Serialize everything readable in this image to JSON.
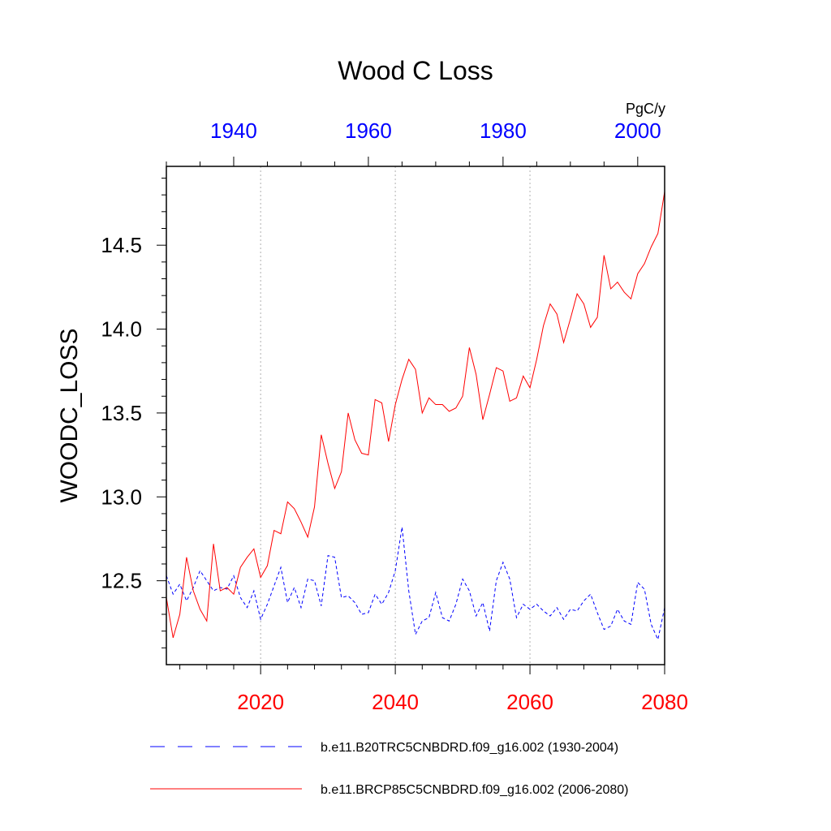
{
  "chart_data": {
    "type": "line",
    "title": "Wood C Loss",
    "units": "PgC/y",
    "ylabel": "WOODC_LOSS",
    "ylim": [
      12.0,
      14.97
    ],
    "yticks": [
      12.5,
      13.0,
      13.5,
      14.0,
      14.5
    ],
    "ytick_labels": [
      "12.5",
      "13.0",
      "13.5",
      "14.0",
      "14.5"
    ],
    "grid": "vertical dotted lines at major x ticks",
    "x_bottom": {
      "range": [
        2006,
        2080
      ],
      "ticks": [
        2020,
        2040,
        2060,
        2080
      ],
      "tick_labels": [
        "2020",
        "2040",
        "2060",
        "2080"
      ],
      "color": "#ff0000"
    },
    "x_top": {
      "range": [
        1930,
        2004
      ],
      "ticks": [
        1940,
        1960,
        1980,
        2000
      ],
      "tick_labels": [
        "1940",
        "1960",
        "1980",
        "2000"
      ],
      "color": "#0000ff"
    },
    "legend_position": "bottom",
    "series": [
      {
        "name": "b.e11.B20TRC5CNBDRD.f09_g16.002 (1930-2004)",
        "axis": "top",
        "color": "#0000ff",
        "dash": "dashed",
        "x_start": 1930,
        "values": [
          12.53,
          12.42,
          12.48,
          12.38,
          12.46,
          12.56,
          12.5,
          12.44,
          12.46,
          12.45,
          12.53,
          12.4,
          12.34,
          12.44,
          12.27,
          12.36,
          12.47,
          12.58,
          12.37,
          12.46,
          12.34,
          12.51,
          12.5,
          12.35,
          12.65,
          12.64,
          12.4,
          12.41,
          12.37,
          12.3,
          12.31,
          12.42,
          12.36,
          12.43,
          12.56,
          12.82,
          12.44,
          12.18,
          12.26,
          12.28,
          12.43,
          12.28,
          12.26,
          12.36,
          12.51,
          12.44,
          12.29,
          12.37,
          12.2,
          12.5,
          12.61,
          12.51,
          12.28,
          12.36,
          12.33,
          12.36,
          12.32,
          12.29,
          12.34,
          12.27,
          12.33,
          12.32,
          12.38,
          12.42,
          12.31,
          12.21,
          12.23,
          12.33,
          12.26,
          12.24,
          12.49,
          12.45,
          12.24,
          12.15,
          12.34
        ]
      },
      {
        "name": "b.e11.BRCP85C5CNBDRD.f09_g16.002 (2006-2080)",
        "axis": "bottom",
        "color": "#ff0000",
        "dash": "solid",
        "x_start": 2006,
        "values": [
          12.4,
          12.16,
          12.3,
          12.64,
          12.44,
          12.33,
          12.26,
          12.72,
          12.44,
          12.46,
          12.42,
          12.58,
          12.64,
          12.69,
          12.52,
          12.59,
          12.8,
          12.78,
          12.97,
          12.93,
          12.85,
          12.76,
          12.94,
          13.37,
          13.2,
          13.05,
          13.15,
          13.5,
          13.34,
          13.26,
          13.25,
          13.58,
          13.56,
          13.33,
          13.55,
          13.7,
          13.82,
          13.76,
          13.5,
          13.59,
          13.55,
          13.55,
          13.51,
          13.53,
          13.6,
          13.89,
          13.73,
          13.46,
          13.61,
          13.77,
          13.75,
          13.57,
          13.59,
          13.72,
          13.65,
          13.82,
          14.02,
          14.15,
          14.09,
          13.92,
          14.06,
          14.21,
          14.15,
          14.01,
          14.07,
          14.44,
          14.24,
          14.28,
          14.22,
          14.18,
          14.33,
          14.39,
          14.49,
          14.57,
          14.82
        ]
      }
    ]
  }
}
